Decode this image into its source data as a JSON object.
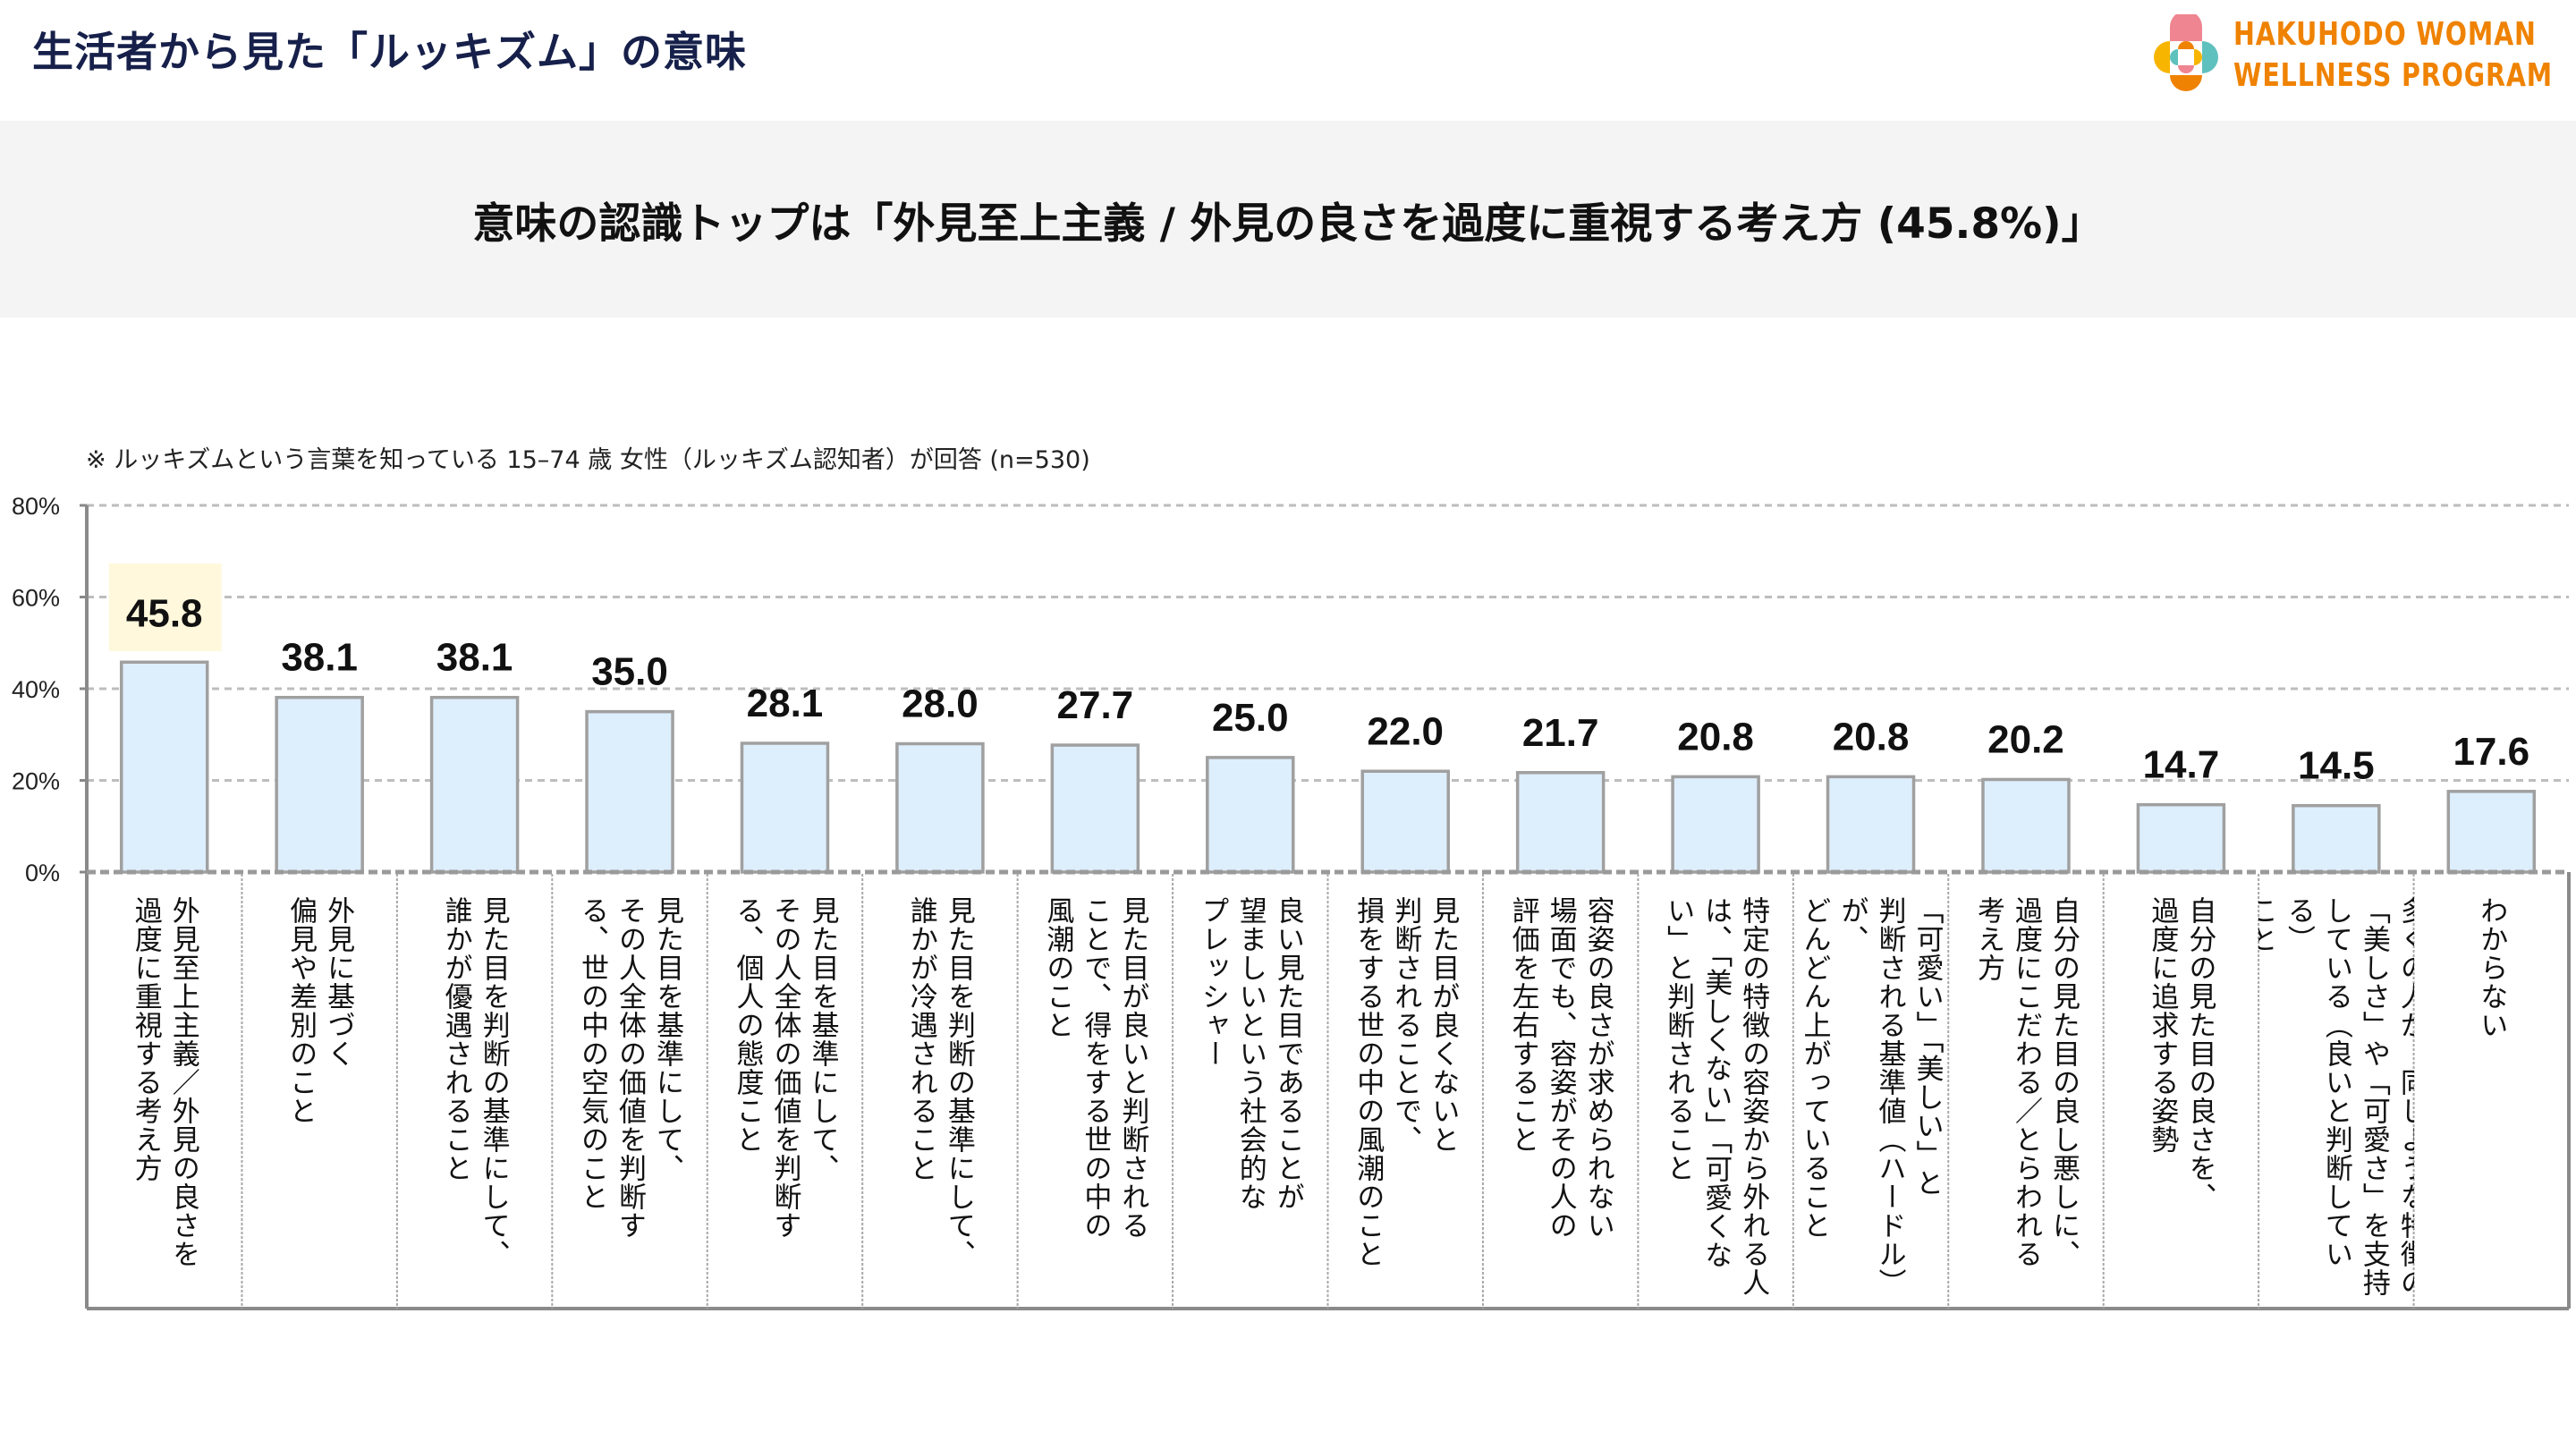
{
  "header": {
    "title": "生活者から見た「ルッキズム」の意味",
    "logo_line1": "HAKUHODO WOMAN",
    "logo_line2": "WELLNESS PROGRAM",
    "logo_icon": "flower-quatrefoil-logo-icon"
  },
  "headline": "意味の認識トップは「外見至上主義 / 外見の良さを過度に重視する考え方 (45.8%)」",
  "note": "※ ルッキズムという言葉を知っている 15–74 歳 女性（ルッキズム認知者）が回答 (n=530)",
  "colors": {
    "title": "#16204a",
    "logo_orange": "#ef8200",
    "logo_pink": "#ee8590",
    "logo_yellow": "#f7b500",
    "logo_teal": "#5fc1be",
    "band_bg": "#f4f4f4",
    "bar_fill": "#ddeefd",
    "bar_stroke": "#a0a0a0",
    "highlight_bg": "#fff8dc",
    "grid": "#bdbdbd"
  },
  "chart_data": {
    "type": "bar",
    "title": "",
    "xlabel": "",
    "ylabel": "",
    "ylim": [
      0,
      80
    ],
    "yticks": [
      0,
      20,
      40,
      60,
      80
    ],
    "ytick_labels": [
      "0%",
      "20%",
      "40%",
      "60%",
      "80%"
    ],
    "grid": true,
    "legend": "none",
    "highlight_index": 0,
    "categories": [
      "外見至上主義／外見の良さを\n過度に重視する考え方",
      "外見に基づく\n偏見や差別のこと",
      "見た目を判断の基準にして、\n誰かが優遇されること",
      "見た目を基準にして、\nその人全体の価値を判断す\nる、世の中の空気のこと",
      "見た目を基準にして、\nその人全体の価値を判断す\nる、個人の態度こと",
      "見た目を判断の基準にして、\n誰かが冷遇されること",
      "見た目が良いと判断される\nことで、得をする世の中の\n風潮のこと",
      "良い見た目であることが\n望ましいという社会的な\nプレッシャー",
      "見た目が良くないと\n判断されることで、\n損をする世の中の風潮のこと",
      "容姿の良さが求められない\n場面でも、容姿がその人の\n評価を左右すること",
      "特定の特徴の容姿から外れる人\nは、「美しくない」「可愛くな\nい」と判断されること",
      "「可愛い」「美しい」と\n判断される基準値（ハードル）が、\nどんどん上がっていること",
      "自分の見た目の良し悪しに、\n過度にこだわる／とらわれる\n考え方",
      "自分の見た目の良さを、\n過度に追求する姿勢",
      "多くの人が、同じような特徴の\n「美しさ」や「可愛さ」を支持\nしている（良いと判断している）\nこと",
      "わからない"
    ],
    "values": [
      45.8,
      38.1,
      38.1,
      35.0,
      28.1,
      28.0,
      27.7,
      25.0,
      22.0,
      21.7,
      20.8,
      20.8,
      20.2,
      14.7,
      14.5,
      17.6
    ],
    "value_labels": [
      "45.8",
      "38.1",
      "38.1",
      "35.0",
      "28.1",
      "28.0",
      "27.7",
      "25.0",
      "22.0",
      "21.7",
      "20.8",
      "20.8",
      "20.2",
      "14.7",
      "14.5",
      "17.6"
    ]
  }
}
